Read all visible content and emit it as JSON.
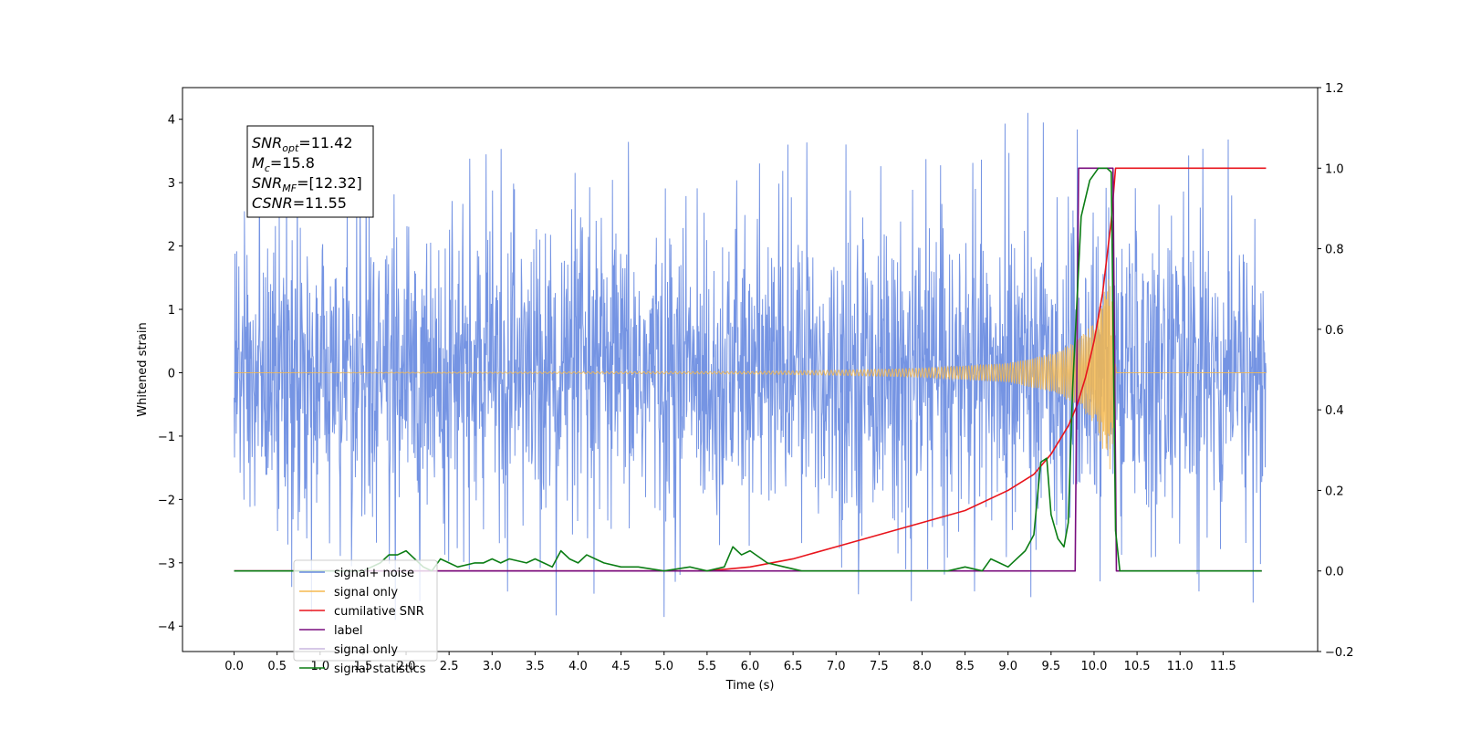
{
  "chart_data": {
    "type": "line",
    "title": "",
    "xlabel": "Time (s)",
    "ylabel": "Whitened strain",
    "y2label": "",
    "xlim": [
      -0.6,
      12.6
    ],
    "ylim": [
      -4.4,
      4.5
    ],
    "y2lim": [
      -0.2,
      1.2
    ],
    "xticks": [
      0.0,
      0.5,
      1.0,
      1.5,
      2.0,
      2.5,
      3.0,
      3.5,
      4.0,
      4.5,
      5.0,
      5.5,
      6.0,
      6.5,
      7.0,
      7.5,
      8.0,
      8.5,
      9.0,
      9.5,
      10.0,
      10.5,
      11.0,
      11.5
    ],
    "xtick_labels": [
      "0.0",
      "0.5",
      "1.0",
      "1.5",
      "2.0",
      "2.5",
      "3.0",
      "3.5",
      "4.0",
      "4.5",
      "5.0",
      "5.5",
      "6.0",
      "6.5",
      "7.0",
      "7.5",
      "8.0",
      "8.5",
      "9.0",
      "9.5",
      "10.0",
      "10.5",
      "11.0",
      "11.5"
    ],
    "yticks": [
      -4,
      -3,
      -2,
      -1,
      0,
      1,
      2,
      3,
      4
    ],
    "ytick_labels": [
      "−4",
      "−3",
      "−2",
      "−1",
      "0",
      "1",
      "2",
      "3",
      "4"
    ],
    "y2ticks": [
      -0.2,
      0.0,
      0.2,
      0.4,
      0.6,
      0.8,
      1.0,
      1.2
    ],
    "y2tick_labels": [
      "−0.2",
      "0.0",
      "0.2",
      "0.4",
      "0.6",
      "0.8",
      "1.0",
      "1.2"
    ],
    "grid": false,
    "legend_position": "lower-left",
    "annotation": {
      "lines": [
        {
          "base": "SNR",
          "sub": "opt",
          "value": "=11.42"
        },
        {
          "base": "M",
          "sub": "c",
          "value": "=15.8"
        },
        {
          "base": "SNR",
          "sub": "MF",
          "value": "=[12.32]"
        },
        {
          "base": "CSNR",
          "sub": "",
          "value": "=11.55"
        }
      ]
    },
    "series": [
      {
        "name": "signal+ noise",
        "axis": "left",
        "color": "#6688e0",
        "kind": "noise-band",
        "t_range": [
          0.0,
          12.0
        ],
        "typical_band": [
          -1.8,
          1.8
        ],
        "extremes": [
          -3.9,
          4.1
        ]
      },
      {
        "name": "signal only",
        "axis": "left",
        "color": "#f5b84f",
        "kind": "chirp",
        "t_range": [
          0.0,
          12.0
        ],
        "points": [
          [
            0.0,
            0.0
          ],
          [
            6.0,
            0.02
          ],
          [
            7.0,
            0.04
          ],
          [
            8.0,
            0.07
          ],
          [
            9.0,
            0.15
          ],
          [
            9.5,
            0.3
          ],
          [
            9.8,
            0.5
          ],
          [
            10.0,
            0.8
          ],
          [
            10.2,
            1.6
          ],
          [
            10.26,
            0.0
          ],
          [
            12.0,
            0.0
          ]
        ]
      },
      {
        "name": "cumilative SNR",
        "axis": "right",
        "color": "#e8141c",
        "points": [
          [
            0.0,
            0.0
          ],
          [
            5.5,
            0.0
          ],
          [
            6.0,
            0.01
          ],
          [
            6.5,
            0.03
          ],
          [
            7.0,
            0.06
          ],
          [
            7.5,
            0.09
          ],
          [
            8.0,
            0.12
          ],
          [
            8.5,
            0.15
          ],
          [
            9.0,
            0.2
          ],
          [
            9.3,
            0.24
          ],
          [
            9.5,
            0.29
          ],
          [
            9.7,
            0.36
          ],
          [
            9.8,
            0.41
          ],
          [
            9.9,
            0.48
          ],
          [
            10.0,
            0.57
          ],
          [
            10.1,
            0.69
          ],
          [
            10.2,
            0.87
          ],
          [
            10.25,
            1.0
          ],
          [
            12.0,
            1.0
          ]
        ]
      },
      {
        "name": "label",
        "axis": "right",
        "color": "#7a0d7e",
        "points": [
          [
            0.0,
            0.0
          ],
          [
            9.78,
            0.0
          ],
          [
            9.82,
            1.0
          ],
          [
            10.22,
            1.0
          ],
          [
            10.26,
            0.0
          ],
          [
            11.95,
            0.0
          ]
        ]
      },
      {
        "name": "signal only",
        "axis": "right",
        "color": "#c9b6df",
        "legend_only": true,
        "points": []
      },
      {
        "name": "signal statistics",
        "axis": "right",
        "color": "#0b7d14",
        "points": [
          [
            0.0,
            0.0
          ],
          [
            1.5,
            0.0
          ],
          [
            1.7,
            0.02
          ],
          [
            1.8,
            0.04
          ],
          [
            1.9,
            0.04
          ],
          [
            2.0,
            0.05
          ],
          [
            2.1,
            0.03
          ],
          [
            2.2,
            0.01
          ],
          [
            2.3,
            0.0
          ],
          [
            2.4,
            0.03
          ],
          [
            2.5,
            0.02
          ],
          [
            2.6,
            0.01
          ],
          [
            2.8,
            0.02
          ],
          [
            2.9,
            0.02
          ],
          [
            3.0,
            0.03
          ],
          [
            3.1,
            0.02
          ],
          [
            3.2,
            0.03
          ],
          [
            3.4,
            0.02
          ],
          [
            3.5,
            0.03
          ],
          [
            3.6,
            0.02
          ],
          [
            3.7,
            0.01
          ],
          [
            3.8,
            0.05
          ],
          [
            3.9,
            0.03
          ],
          [
            4.0,
            0.02
          ],
          [
            4.1,
            0.04
          ],
          [
            4.2,
            0.03
          ],
          [
            4.3,
            0.02
          ],
          [
            4.5,
            0.01
          ],
          [
            4.7,
            0.01
          ],
          [
            5.0,
            0.0
          ],
          [
            5.3,
            0.01
          ],
          [
            5.5,
            0.0
          ],
          [
            5.7,
            0.01
          ],
          [
            5.8,
            0.06
          ],
          [
            5.9,
            0.04
          ],
          [
            6.0,
            0.05
          ],
          [
            6.2,
            0.02
          ],
          [
            6.4,
            0.01
          ],
          [
            6.6,
            0.0
          ],
          [
            8.3,
            0.0
          ],
          [
            8.5,
            0.01
          ],
          [
            8.7,
            0.0
          ],
          [
            8.8,
            0.03
          ],
          [
            8.9,
            0.02
          ],
          [
            9.0,
            0.01
          ],
          [
            9.1,
            0.03
          ],
          [
            9.2,
            0.05
          ],
          [
            9.3,
            0.09
          ],
          [
            9.38,
            0.27
          ],
          [
            9.45,
            0.28
          ],
          [
            9.5,
            0.14
          ],
          [
            9.58,
            0.08
          ],
          [
            9.65,
            0.06
          ],
          [
            9.7,
            0.12
          ],
          [
            9.75,
            0.45
          ],
          [
            9.85,
            0.88
          ],
          [
            9.95,
            0.97
          ],
          [
            10.05,
            1.0
          ],
          [
            10.15,
            1.0
          ],
          [
            10.2,
            0.99
          ],
          [
            10.25,
            0.1
          ],
          [
            10.3,
            0.0
          ],
          [
            11.95,
            0.0
          ]
        ]
      }
    ]
  }
}
